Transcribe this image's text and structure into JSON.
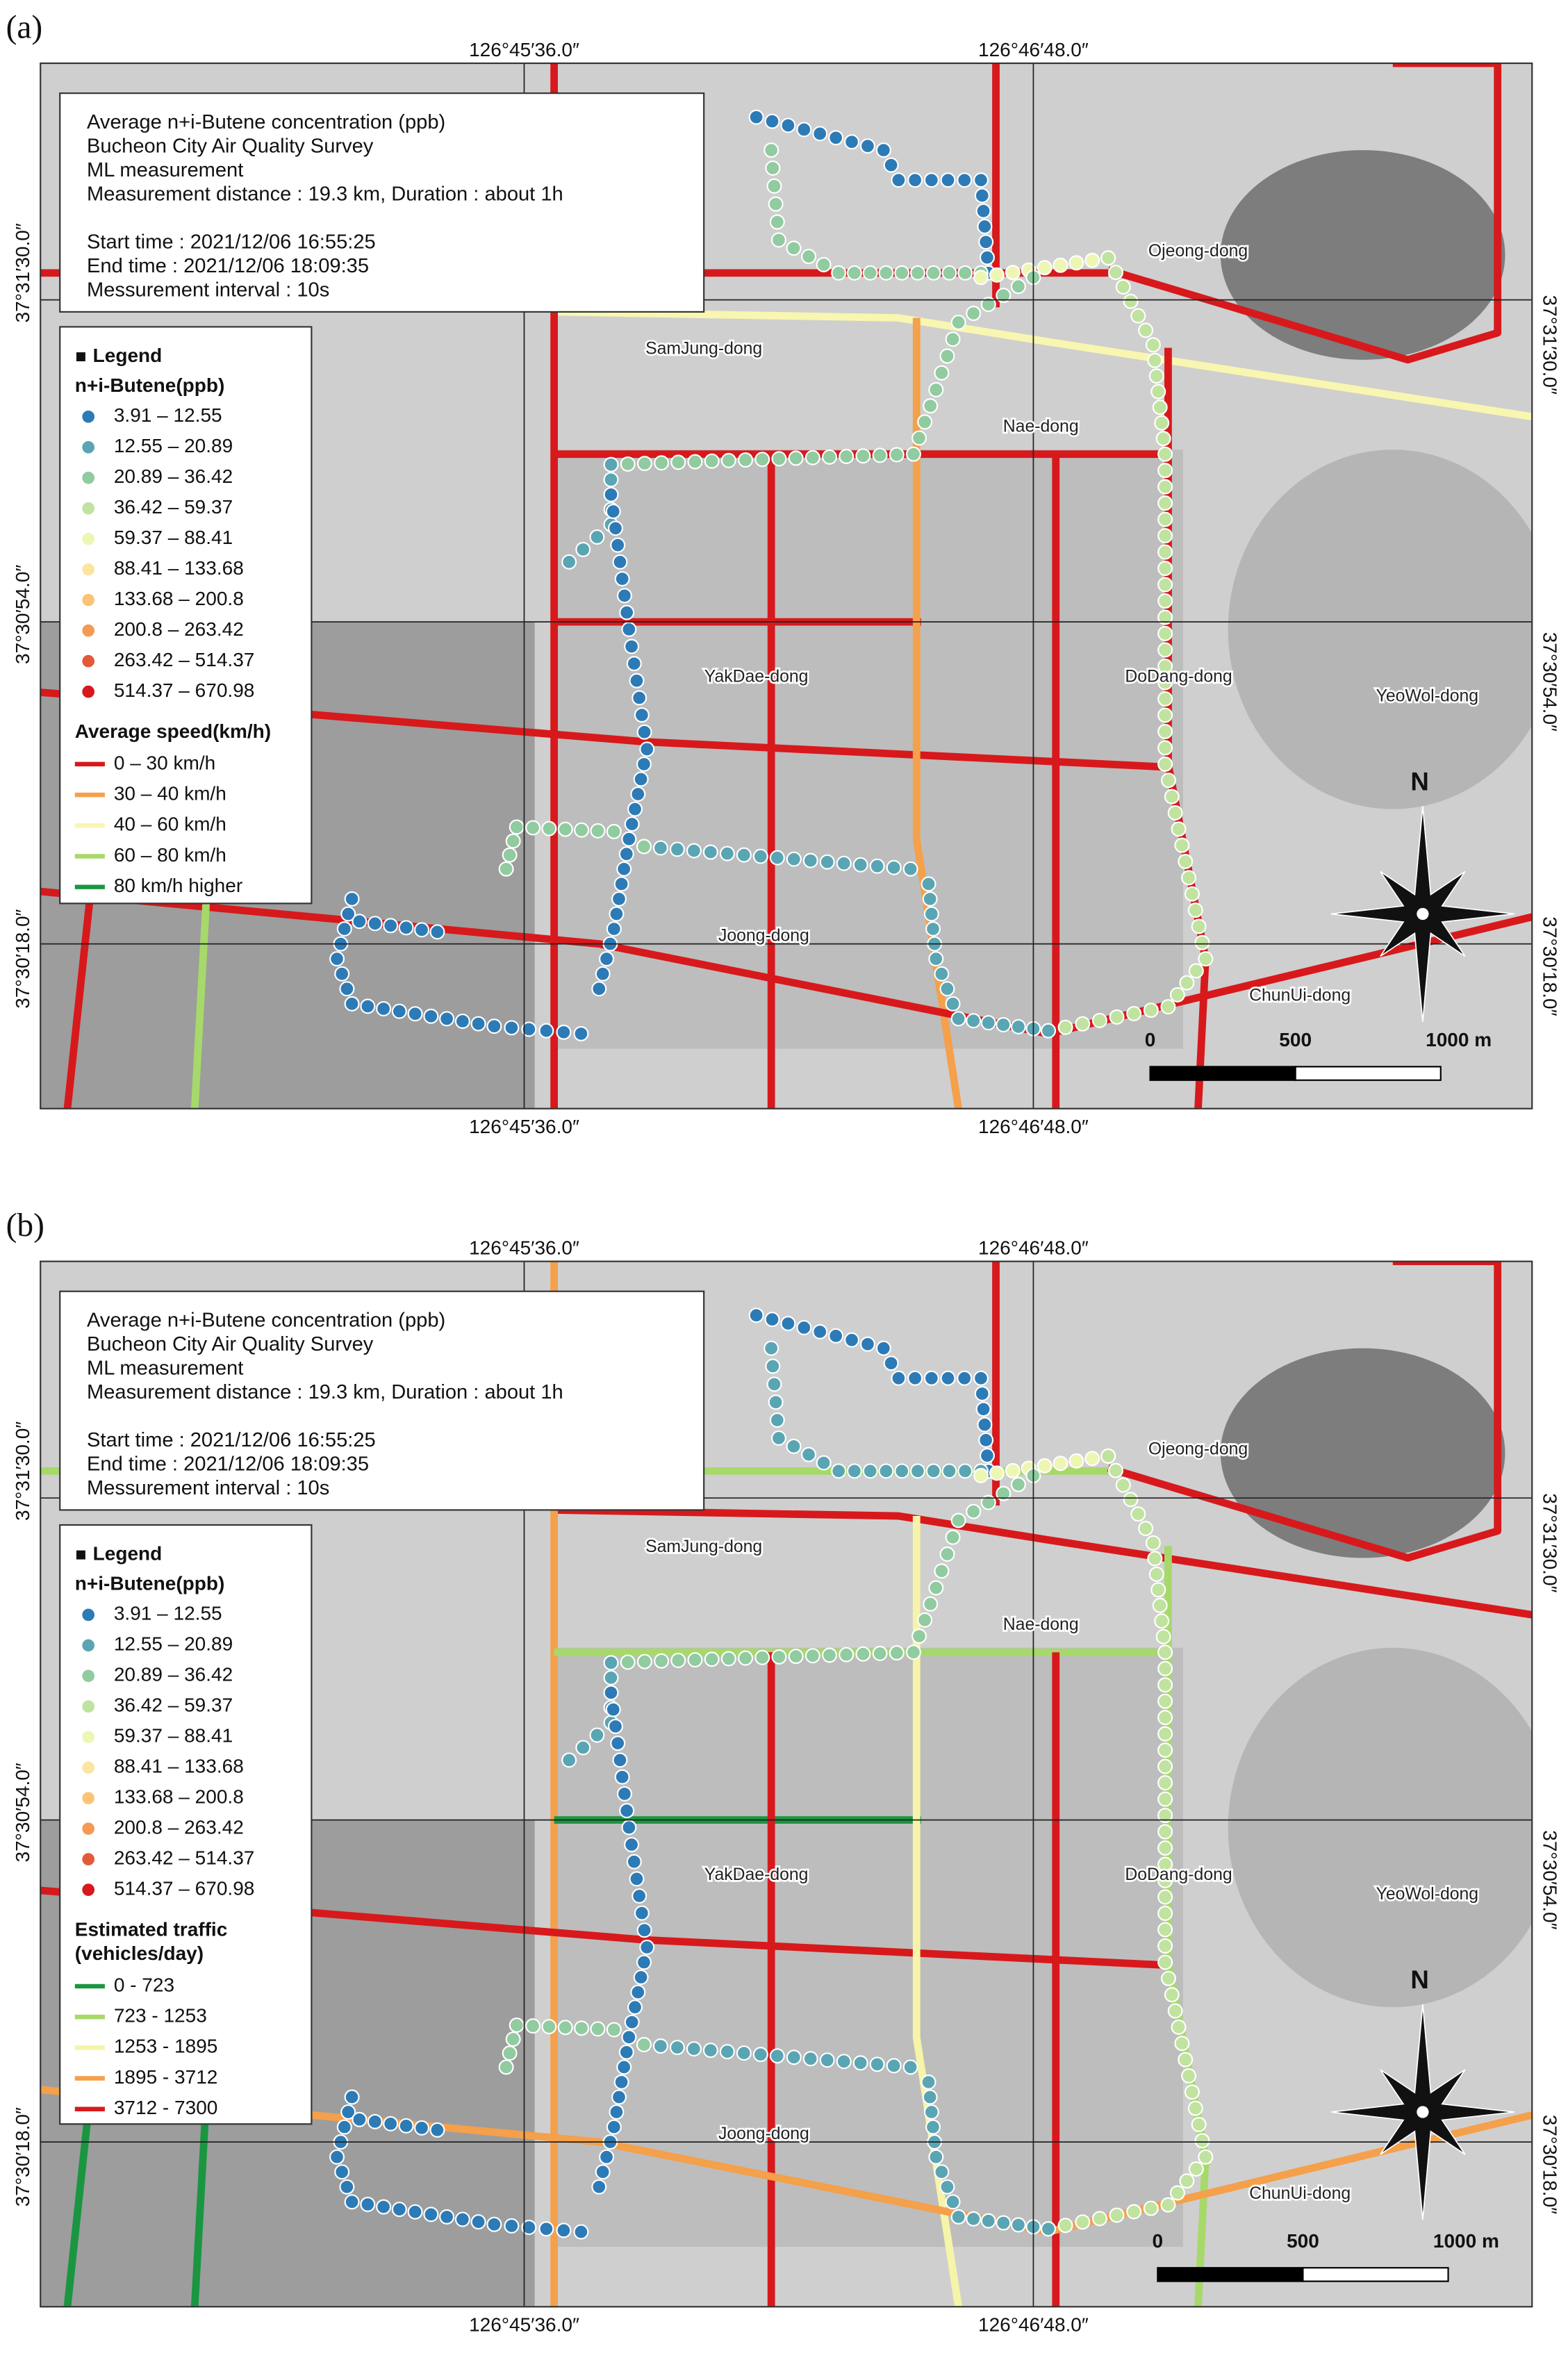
{
  "panels": [
    {
      "label": "(a)",
      "top_coords": [
        "126°45′36.0″",
        "126°46′48.0″"
      ],
      "bottom_coords": [
        "126°45′36.0″",
        "126°46′48.0″"
      ],
      "left_coords": [
        "37°31′30.0″",
        "37°30′54.0″",
        "37°30′18.0″"
      ],
      "right_coords": [
        "37°31′30.0″",
        "37°30′54.0″",
        "37°30′18.0″"
      ],
      "info": [
        "Average n+i-Butene concentration (ppb)",
        "Bucheon City Air Quality Survey",
        "ML measurement",
        "Measurement distance : 19.3 km, Duration : about 1h",
        "Start time : 2021/12/06 16:55:25",
        "End time : 2021/12/06 18:09:35",
        "Messurement interval : 10s"
      ],
      "legend": {
        "title": "Legend",
        "concentration_title": "n+i-Butene(ppb)",
        "concentration_classes": [
          {
            "label": "3.91 – 12.55",
            "color": "#2c7bb6"
          },
          {
            "label": "12.55 – 20.89",
            "color": "#5aa5b4"
          },
          {
            "label": "20.89 – 36.42",
            "color": "#91cba0"
          },
          {
            "label": "36.42 – 59.37",
            "color": "#c0e3a0"
          },
          {
            "label": "59.37 – 88.41",
            "color": "#eef6b4"
          },
          {
            "label": "88.41 – 133.68",
            "color": "#fde4a0"
          },
          {
            "label": "133.68 – 200.8",
            "color": "#fdc477"
          },
          {
            "label": "200.8 – 263.42",
            "color": "#f59a55"
          },
          {
            "label": "263.42 – 514.37",
            "color": "#e35a3a"
          },
          {
            "label": "514.37 – 670.98",
            "color": "#d7191c"
          }
        ],
        "road_title": [
          "Average speed(km/h)"
        ],
        "road_classes": [
          {
            "label": "0 – 30 km/h",
            "color": "#d7191c"
          },
          {
            "label": "30 – 40 km/h",
            "color": "#f5a04a"
          },
          {
            "label": "40 – 60 km/h",
            "color": "#f8f6b0"
          },
          {
            "label": "60 – 80 km/h",
            "color": "#a6d96a"
          },
          {
            "label": "80 km/h higher",
            "color": "#1a9641"
          }
        ]
      },
      "places": [
        "Ojeong-dong",
        "SamJung-dong",
        "Nae-dong",
        "YakDae-dong",
        "DoDang-dong",
        "YeoWol-dong",
        "Joong-dong",
        "ChunUi-dong"
      ],
      "north": "N",
      "scale": [
        "0",
        "500",
        "1000 m"
      ]
    },
    {
      "label": "(b)",
      "top_coords": [
        "126°45′36.0″",
        "126°46′48.0″"
      ],
      "bottom_coords": [
        "126°45′36.0″",
        "126°46′48.0″"
      ],
      "left_coords": [
        "37°31′30.0″",
        "37°30′54.0″",
        "37°30′18.0″"
      ],
      "right_coords": [
        "37°31′30.0″",
        "37°30′54.0″",
        "37°30′18.0″"
      ],
      "info": [
        "Average n+i-Butene concentration (ppb)",
        "Bucheon City Air Quality Survey",
        "ML measurement",
        "Measurement distance : 19.3 km, Duration : about 1h",
        "Start time : 2021/12/06 16:55:25",
        "End time : 2021/12/06 18:09:35",
        "Messurement interval : 10s"
      ],
      "legend": {
        "title": "Legend",
        "concentration_title": "n+i-Butene(ppb)",
        "concentration_classes": [
          {
            "label": "3.91 – 12.55",
            "color": "#2c7bb6"
          },
          {
            "label": "12.55 – 20.89",
            "color": "#5aa5b4"
          },
          {
            "label": "20.89 – 36.42",
            "color": "#91cba0"
          },
          {
            "label": "36.42 – 59.37",
            "color": "#c0e3a0"
          },
          {
            "label": "59.37 – 88.41",
            "color": "#eef6b4"
          },
          {
            "label": "88.41 – 133.68",
            "color": "#fde4a0"
          },
          {
            "label": "133.68 – 200.8",
            "color": "#fdc477"
          },
          {
            "label": "200.8 – 263.42",
            "color": "#f59a55"
          },
          {
            "label": "263.42 – 514.37",
            "color": "#e35a3a"
          },
          {
            "label": "514.37 – 670.98",
            "color": "#d7191c"
          }
        ],
        "road_title": [
          "Estimated traffic",
          "(vehicles/day)"
        ],
        "road_classes": [
          {
            "label": "0 - 723",
            "color": "#1a9641"
          },
          {
            "label": "723 - 1253",
            "color": "#a6d96a"
          },
          {
            "label": "1253 - 1895",
            "color": "#f6f4a8"
          },
          {
            "label": "1895 - 3712",
            "color": "#f5a04a"
          },
          {
            "label": "3712 - 7300",
            "color": "#d7191c"
          }
        ]
      },
      "places": [
        "Ojeong-dong",
        "SamJung-dong",
        "Nae-dong",
        "YakDae-dong",
        "DoDang-dong",
        "YeoWol-dong",
        "Joong-dong",
        "ChunUi-dong"
      ],
      "north": "N",
      "scale": [
        "0",
        "500",
        "1000 m"
      ]
    }
  ]
}
